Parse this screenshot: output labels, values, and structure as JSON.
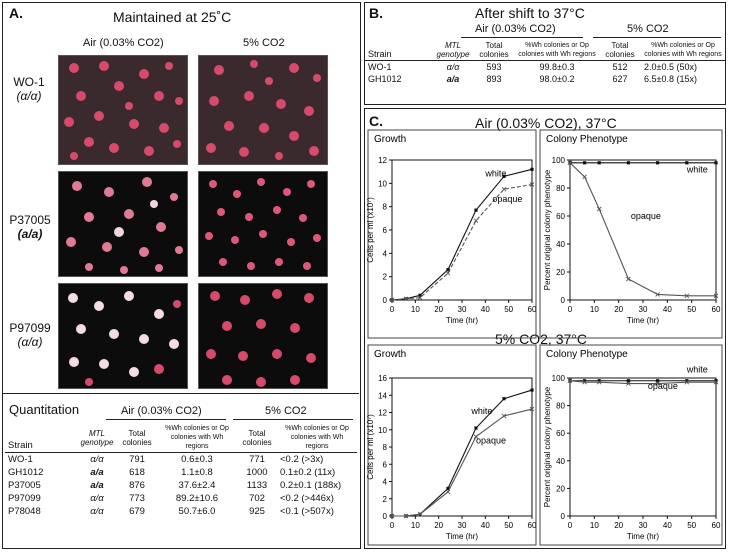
{
  "panelA": {
    "letter": "A.",
    "title": "Maintained at 25˚C",
    "col_air": "Air (0.03% CO2)",
    "col_co2": "5% CO2",
    "rows": [
      {
        "strain": "WO-1",
        "genotype": "(α/α)"
      },
      {
        "strain": "P37005",
        "genotype": "(a/a)"
      },
      {
        "strain": "P97099",
        "genotype": "(α/α)"
      }
    ],
    "quant_title": "Quantitation",
    "q_air_header": "Air (0.03% CO2)",
    "q_co2_header": "5% CO2",
    "q_headers": [
      "Strain",
      "MTL genotype",
      "Total colonies",
      "%Wh colonies or Op colonies with Wh regions",
      "Total colonies",
      "%Wh colonies or Op colonies with Wh regions"
    ],
    "q_rows": [
      [
        "WO-1",
        "α/α",
        "791",
        "0.6±0.3",
        "771",
        "<0.2 (>3x)"
      ],
      [
        "GH1012",
        "a/a",
        "618",
        "1.1±0.8",
        "1000",
        "0.1±0.2 (11x)"
      ],
      [
        "P37005",
        "a/a",
        "876",
        "37.6±2.4",
        "1133",
        "0.2±0.1 (188x)"
      ],
      [
        "P97099",
        "α/α",
        "773",
        "89.2±10.6",
        "702",
        "<0.2 (>446x)"
      ],
      [
        "P78048",
        "α/α",
        "679",
        "50.7±6.0",
        "925",
        "<0.1 (>507x)"
      ]
    ]
  },
  "panelB": {
    "letter": "B.",
    "title": "After shift to 37°C",
    "air_header": "Air (0.03% CO2)",
    "co2_header": "5% CO2",
    "headers": [
      "Strain",
      "MTL genotype",
      "Total colonies",
      "%Wh colonies or Op colonies with Wh regions",
      "Total colonies",
      "%Wh colonies or Op colonies with Wh regions"
    ],
    "rows": [
      [
        "WO-1",
        "α/α",
        "593",
        "99.8±0.3",
        "512",
        "2.0±0.5 (50x)"
      ],
      [
        "GH1012",
        "a/a",
        "893",
        "98.0±0.2",
        "627",
        "6.5±0.8 (15x)"
      ]
    ]
  },
  "panelC": {
    "letter": "C.",
    "title_air": "Air (0.03% CO2), 37°C",
    "title_co2": "5% CO2, 37°C",
    "growth_label": "Growth",
    "colony_label": "Colony Phenotype",
    "growth_ylabel": "Cells per ml (x10⁷)",
    "colony_ylabel": "Percent original colony phenotype",
    "xlabel": "Time (hr)"
  },
  "chart_data": [
    {
      "type": "line",
      "title": "Growth",
      "xlabel": "Time (hr)",
      "ylabel": "Cells per ml (x10⁷)",
      "xlim": [
        0,
        60
      ],
      "ylim": [
        0,
        12
      ],
      "xticks": [
        0,
        10,
        20,
        30,
        40,
        50,
        60
      ],
      "yticks": [
        0,
        2,
        4,
        6,
        8,
        10,
        12
      ],
      "series": [
        {
          "name": "white",
          "x": [
            0,
            6,
            12,
            24,
            36,
            48,
            60
          ],
          "y": [
            0.0,
            0.1,
            0.4,
            2.6,
            7.7,
            10.6,
            11.2
          ],
          "dash": false
        },
        {
          "name": "opaque",
          "x": [
            0,
            6,
            12,
            24,
            36,
            48,
            60
          ],
          "y": [
            0.0,
            0.1,
            0.2,
            2.3,
            6.8,
            9.5,
            9.9
          ],
          "dash": true
        }
      ]
    },
    {
      "type": "line",
      "title": "Colony Phenotype",
      "xlabel": "Time (hr)",
      "ylabel": "Percent original colony phenotype",
      "xlim": [
        0,
        60
      ],
      "ylim": [
        0,
        100
      ],
      "xticks": [
        0,
        10,
        20,
        30,
        40,
        50,
        60
      ],
      "yticks": [
        0,
        20,
        40,
        60,
        80,
        100
      ],
      "series": [
        {
          "name": "white",
          "x": [
            0,
            6,
            12,
            24,
            36,
            48,
            60
          ],
          "y": [
            98,
            98,
            98,
            98,
            98,
            98,
            98
          ],
          "dash": false
        },
        {
          "name": "opaque",
          "x": [
            0,
            6,
            12,
            24,
            36,
            48,
            60
          ],
          "y": [
            98,
            88,
            65,
            15,
            4,
            3,
            3
          ],
          "dash": false
        }
      ]
    },
    {
      "type": "line",
      "title": "Growth",
      "xlabel": "Time (hr)",
      "ylabel": "Cells per ml (x10⁷)",
      "xlim": [
        0,
        60
      ],
      "ylim": [
        0,
        16
      ],
      "xticks": [
        0,
        10,
        20,
        30,
        40,
        50,
        60
      ],
      "yticks": [
        0,
        2,
        4,
        6,
        8,
        10,
        12,
        14,
        16
      ],
      "series": [
        {
          "name": "white",
          "x": [
            0,
            6,
            12,
            24,
            36,
            48,
            60
          ],
          "y": [
            0.0,
            0.0,
            0.2,
            3.2,
            10.2,
            13.6,
            14.6
          ],
          "dash": false
        },
        {
          "name": "opaque",
          "x": [
            0,
            6,
            12,
            24,
            36,
            48,
            60
          ],
          "y": [
            0.0,
            0.0,
            0.2,
            2.8,
            9.2,
            11.6,
            12.4
          ],
          "dash": false
        }
      ]
    },
    {
      "type": "line",
      "title": "Colony Phenotype",
      "xlabel": "Time (hr)",
      "ylabel": "Percent original colony phenotype",
      "xlim": [
        0,
        60
      ],
      "ylim": [
        0,
        100
      ],
      "xticks": [
        0,
        10,
        20,
        30,
        40,
        50,
        60
      ],
      "yticks": [
        0,
        20,
        40,
        60,
        80,
        100
      ],
      "series": [
        {
          "name": "white",
          "x": [
            0,
            6,
            12,
            24,
            36,
            48,
            60
          ],
          "y": [
            98,
            98,
            98,
            98,
            98,
            98,
            98
          ],
          "dash": false
        },
        {
          "name": "opaque",
          "x": [
            0,
            6,
            12,
            24,
            36,
            48,
            60
          ],
          "y": [
            98,
            97,
            97,
            96,
            96,
            97,
            97
          ],
          "dash": false
        }
      ]
    }
  ]
}
